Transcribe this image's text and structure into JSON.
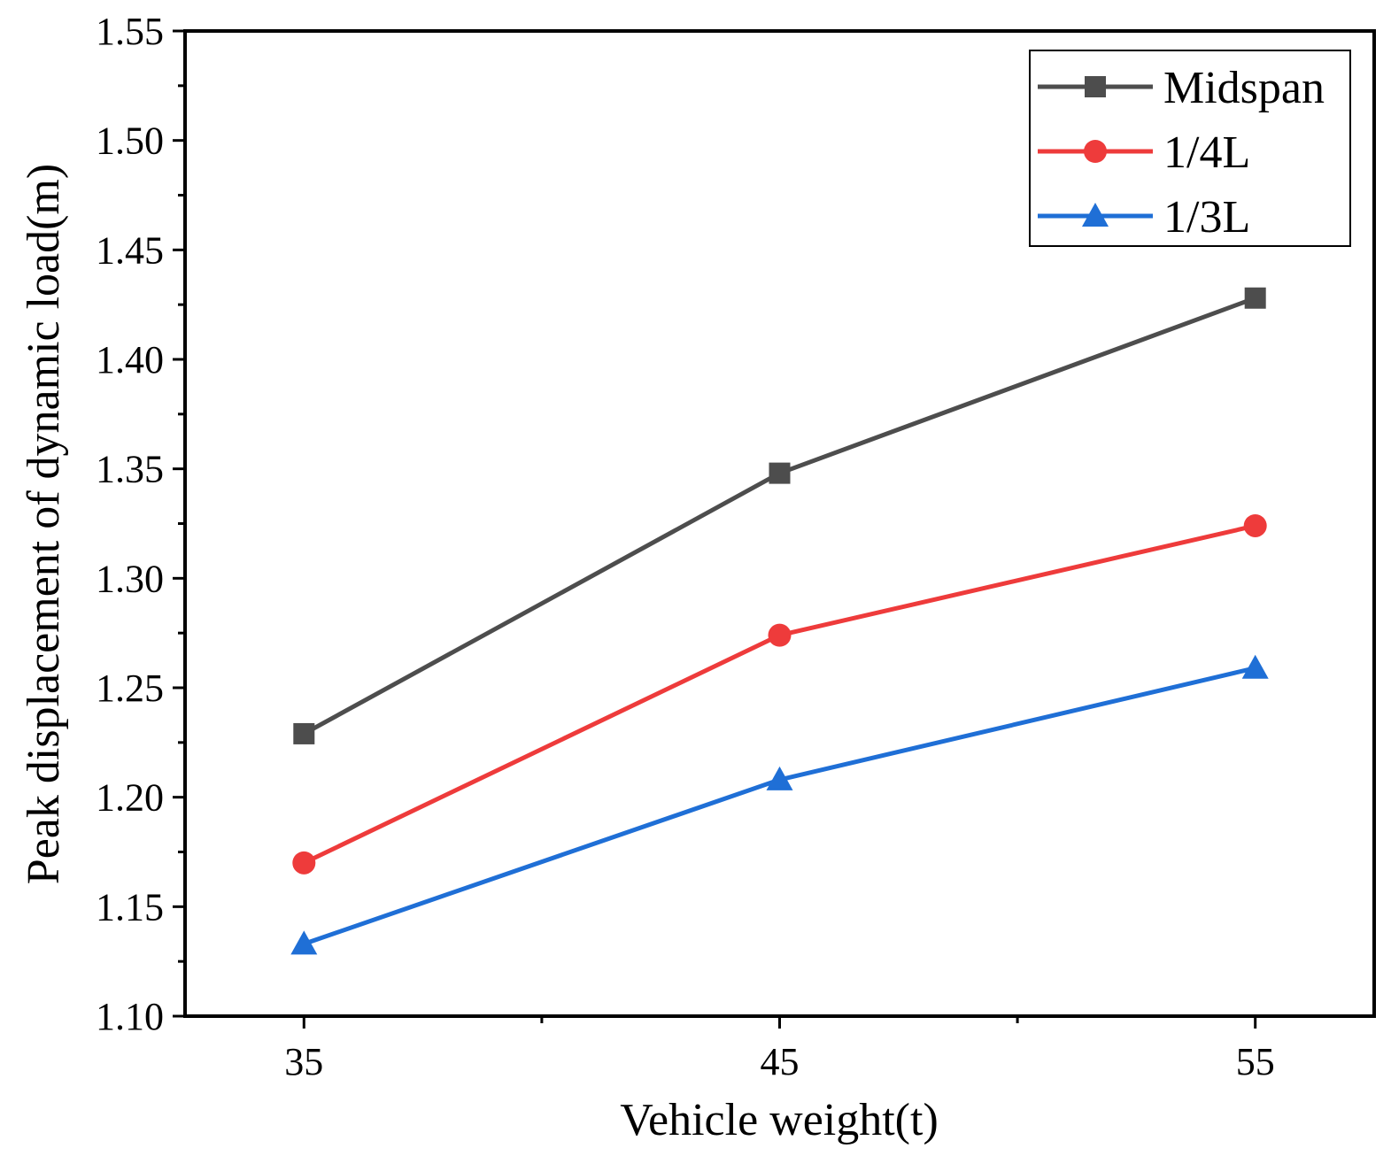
{
  "chart_data": {
    "type": "line",
    "title": "",
    "xlabel": "Vehicle weight(t)",
    "ylabel": "Peak displacement of dynamic load(m)",
    "x": [
      35,
      45,
      55
    ],
    "x_ticks": [
      "35",
      "45",
      "55"
    ],
    "xlim": [
      32.5,
      57.5
    ],
    "ylim": [
      1.1,
      1.55
    ],
    "y_ticks": [
      "1.10",
      "1.15",
      "1.20",
      "1.25",
      "1.30",
      "1.35",
      "1.40",
      "1.45",
      "1.50",
      "1.55"
    ],
    "grid": false,
    "legend_position": "top-right",
    "series": [
      {
        "name": "Midspan",
        "marker": "square",
        "color": "#4d4d4d",
        "values": [
          1.229,
          1.348,
          1.428
        ]
      },
      {
        "name": "1/4L",
        "marker": "circle",
        "color": "#ee3b3b",
        "values": [
          1.17,
          1.274,
          1.324
        ]
      },
      {
        "name": "1/3L",
        "marker": "triangle",
        "color": "#1f6fd6",
        "values": [
          1.133,
          1.208,
          1.259
        ]
      }
    ]
  }
}
